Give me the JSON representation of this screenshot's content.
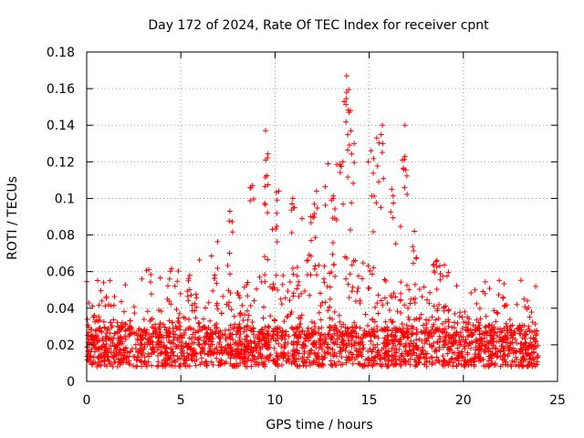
{
  "chart_data": {
    "type": "scatter",
    "title": "Day 172 of 2024, Rate Of TEC Index for receiver cpnt",
    "xlabel": "GPS time / hours",
    "ylabel": "ROTI / TECUs",
    "xlim": [
      0,
      25
    ],
    "ylim": [
      0,
      0.18
    ],
    "x_ticks": [
      0,
      5,
      10,
      15,
      20,
      25
    ],
    "x_tick_labels": [
      "0",
      "5",
      "10",
      "15",
      "20",
      "25"
    ],
    "y_ticks": [
      0,
      0.02,
      0.04,
      0.06,
      0.08,
      0.1,
      0.12,
      0.14,
      0.16,
      0.18
    ],
    "y_tick_labels": [
      "0",
      "0.02",
      "0.04",
      "0.06",
      "0.08",
      "0.1",
      "0.12",
      "0.14",
      "0.16",
      "0.18"
    ],
    "grid": true,
    "marker": "+",
    "marker_color": "#ff0000",
    "series": [
      {
        "name": "ROTI",
        "data_x_range": [
          0,
          24
        ],
        "baseline_band": [
          0.008,
          0.03
        ],
        "notable_points": [
          {
            "x": 0.4,
            "y": 0.036
          },
          {
            "x": 0.9,
            "y": 0.054
          },
          {
            "x": 3.3,
            "y": 0.061
          },
          {
            "x": 4.4,
            "y": 0.056
          },
          {
            "x": 5.4,
            "y": 0.055
          },
          {
            "x": 6.8,
            "y": 0.058
          },
          {
            "x": 7.6,
            "y": 0.093
          },
          {
            "x": 8.8,
            "y": 0.107
          },
          {
            "x": 9.5,
            "y": 0.137
          },
          {
            "x": 9.5,
            "y": 0.121
          },
          {
            "x": 10.2,
            "y": 0.104
          },
          {
            "x": 10.9,
            "y": 0.097
          },
          {
            "x": 11.9,
            "y": 0.09
          },
          {
            "x": 12.2,
            "y": 0.104
          },
          {
            "x": 13.1,
            "y": 0.1
          },
          {
            "x": 13.6,
            "y": 0.12
          },
          {
            "x": 13.8,
            "y": 0.167
          },
          {
            "x": 13.8,
            "y": 0.158
          },
          {
            "x": 14.0,
            "y": 0.148
          },
          {
            "x": 14.2,
            "y": 0.13
          },
          {
            "x": 15.1,
            "y": 0.126
          },
          {
            "x": 15.4,
            "y": 0.133
          },
          {
            "x": 15.7,
            "y": 0.14
          },
          {
            "x": 16.2,
            "y": 0.105
          },
          {
            "x": 16.9,
            "y": 0.14
          },
          {
            "x": 16.9,
            "y": 0.123
          },
          {
            "x": 17.4,
            "y": 0.082
          },
          {
            "x": 18.6,
            "y": 0.066
          },
          {
            "x": 22.1,
            "y": 0.046
          },
          {
            "x": 23.4,
            "y": 0.044
          }
        ]
      }
    ]
  }
}
